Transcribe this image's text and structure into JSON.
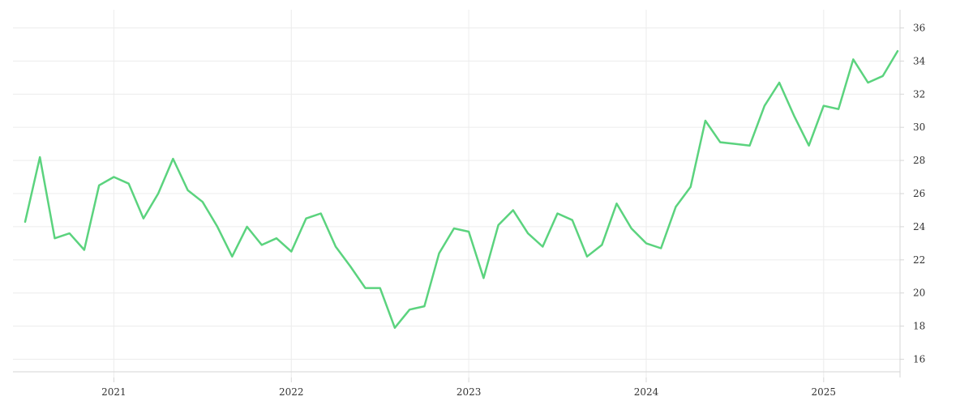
{
  "chart_data": {
    "type": "line",
    "title": "",
    "xlabel": "",
    "ylabel": "",
    "y_axis_position": "right",
    "grid": true,
    "legend": "none",
    "xlim": [
      "2020-07",
      "2025-06"
    ],
    "ylim": [
      15,
      37
    ],
    "x_ticks": [
      {
        "value": "2021-01",
        "label": "2021"
      },
      {
        "value": "2022-01",
        "label": "2022"
      },
      {
        "value": "2023-01",
        "label": "2023"
      },
      {
        "value": "2024-01",
        "label": "2024"
      },
      {
        "value": "2025-01",
        "label": "2025"
      }
    ],
    "y_ticks": [
      16,
      18,
      20,
      22,
      24,
      26,
      28,
      30,
      32,
      34,
      36
    ],
    "x": [
      "2020-07",
      "2020-08",
      "2020-09",
      "2020-10",
      "2020-11",
      "2020-12",
      "2021-01",
      "2021-02",
      "2021-03",
      "2021-04",
      "2021-05",
      "2021-06",
      "2021-07",
      "2021-08",
      "2021-09",
      "2021-10",
      "2021-11",
      "2021-12",
      "2022-01",
      "2022-02",
      "2022-03",
      "2022-04",
      "2022-05",
      "2022-06",
      "2022-07",
      "2022-08",
      "2022-09",
      "2022-10",
      "2022-11",
      "2022-12",
      "2023-01",
      "2023-02",
      "2023-03",
      "2023-04",
      "2023-05",
      "2023-06",
      "2023-07",
      "2023-08",
      "2023-09",
      "2023-10",
      "2023-11",
      "2023-12",
      "2024-01",
      "2024-02",
      "2024-03",
      "2024-04",
      "2024-05",
      "2024-06",
      "2024-07",
      "2024-08",
      "2024-09",
      "2024-10",
      "2024-11",
      "2024-12",
      "2025-01",
      "2025-02",
      "2025-03",
      "2025-04",
      "2025-05",
      "2025-06"
    ],
    "series": [
      {
        "color": "#5bd37e",
        "values": [
          24.3,
          28.2,
          23.3,
          23.6,
          22.6,
          26.5,
          27.0,
          26.6,
          24.5,
          26.0,
          28.1,
          26.2,
          25.5,
          24.0,
          22.2,
          24.0,
          22.9,
          23.3,
          22.5,
          24.5,
          24.8,
          22.8,
          21.6,
          20.3,
          20.3,
          17.9,
          19.0,
          19.2,
          22.4,
          23.9,
          23.7,
          20.9,
          24.1,
          25.0,
          23.6,
          22.8,
          24.8,
          24.4,
          22.2,
          22.9,
          25.4,
          23.9,
          23.0,
          22.7,
          25.2,
          26.4,
          30.4,
          29.1,
          29.0,
          28.9,
          31.3,
          32.7,
          30.7,
          28.9,
          31.3,
          31.1,
          34.1,
          32.7,
          33.1,
          34.6
        ]
      }
    ]
  }
}
